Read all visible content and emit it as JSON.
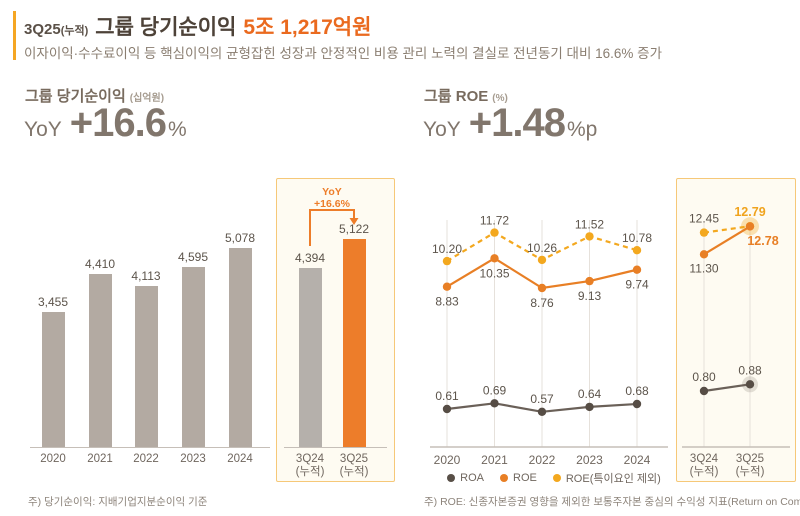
{
  "header": {
    "period": "3Q25",
    "period_suffix": "(누적)",
    "title": "그룹 당기순이익",
    "amount": "5조 1,217억원",
    "subtitle": "이자이익·수수료이익 등 핵심이익의 균형잡힌 성장과 안정적인 비용 관리 노력의 결실로 전년동기 대비 16.6% 증가"
  },
  "net_income_panel": {
    "section_title": "그룹 당기순이익",
    "unit": "(십억원)",
    "yoy_label": "YoY",
    "yoy_value": "+16.6",
    "yoy_unit": "%",
    "highlight_annotation": {
      "line1": "YoY",
      "line2": "+16.6%"
    },
    "footnote": "주) 당기순이익: 지배기업지분순이익 기준"
  },
  "roe_panel": {
    "section_title": "그룹 ROE",
    "unit": "(%)",
    "yoy_label": "YoY",
    "yoy_value": "+1.48",
    "yoy_unit": "%p",
    "legend": [
      {
        "label": "ROA",
        "color": "#584f47"
      },
      {
        "label": "ROE",
        "color": "#e87f25"
      },
      {
        "label": "ROE(특이요인 제외)",
        "color": "#f3a81f"
      }
    ],
    "footnote": "주) ROE: 신종자본증권 영향을 제외한 보통주자본 중심의 수익성 지표(Return on Common Equity) 기준으로 산출"
  },
  "chart_data": [
    {
      "id": "net_income_yearly",
      "type": "bar",
      "title": "그룹 당기순이익",
      "ylabel": "십억원",
      "categories": [
        "2020",
        "2021",
        "2022",
        "2023",
        "2024"
      ],
      "values": [
        3455,
        4410,
        4113,
        4595,
        5078
      ],
      "labels": [
        "3,455",
        "4,410",
        "4,113",
        "4,595",
        "5,078"
      ],
      "bar_color": "#b3aaa2"
    },
    {
      "id": "net_income_quarterly",
      "type": "bar",
      "categories": [
        "3Q24\n(누적)",
        "3Q25\n(누적)"
      ],
      "values": [
        4394,
        5122
      ],
      "labels": [
        "4,394",
        "5,122"
      ],
      "bar_colors": [
        "#b5b0ab",
        "#ed7d2a"
      ],
      "annotation": "YoY +16.6%"
    },
    {
      "id": "roe_yearly",
      "type": "line",
      "title": "그룹 ROE",
      "ylabel": "%",
      "categories": [
        "2020",
        "2021",
        "2022",
        "2023",
        "2024"
      ],
      "series": [
        {
          "name": "ROA",
          "values": [
            0.61,
            0.69,
            0.57,
            0.64,
            0.68
          ],
          "labels": [
            "0.61",
            "0.69",
            "0.57",
            "0.64",
            "0.68"
          ],
          "color": "#6a6058",
          "style": "solid"
        },
        {
          "name": "ROE",
          "values": [
            8.83,
            10.35,
            8.76,
            9.13,
            9.74
          ],
          "labels": [
            "8.83",
            "10.35",
            "8.76",
            "9.13",
            "9.74"
          ],
          "color": "#e87f25",
          "style": "solid"
        },
        {
          "name": "ROE(특이요인 제외)",
          "values": [
            10.2,
            11.72,
            10.26,
            11.52,
            10.78
          ],
          "labels": [
            "10.20",
            "11.72",
            "10.26",
            "11.52",
            "10.78"
          ],
          "color": "#f3a81f",
          "style": "dashed"
        }
      ]
    },
    {
      "id": "roe_quarterly",
      "type": "line",
      "categories": [
        "3Q24\n(누적)",
        "3Q25\n(누적)"
      ],
      "series": [
        {
          "name": "ROA",
          "values": [
            0.8,
            0.88
          ],
          "labels": [
            "0.80",
            "0.88"
          ],
          "color": "#6a6058",
          "style": "solid"
        },
        {
          "name": "ROE",
          "values": [
            11.3,
            12.78
          ],
          "labels": [
            "11.30",
            "12.78"
          ],
          "color": "#e87f25",
          "style": "solid"
        },
        {
          "name": "ROE(특이요인 제외)",
          "values": [
            12.45,
            12.79
          ],
          "labels": [
            "12.45",
            "12.79"
          ],
          "color": "#f3a81f",
          "style": "dashed"
        }
      ]
    }
  ],
  "colors": {
    "accent_orange": "#ea6a1f",
    "accent_bar": "#f5a623",
    "highlight_border": "#f6c878",
    "highlight_bg": "#fefbf2",
    "bar_gray": "#b3aaa2",
    "bar_orange": "#ed7d2a",
    "line_gold": "#f3a81f",
    "text_dark": "#4d4238",
    "text_muted": "#8a7e71"
  }
}
